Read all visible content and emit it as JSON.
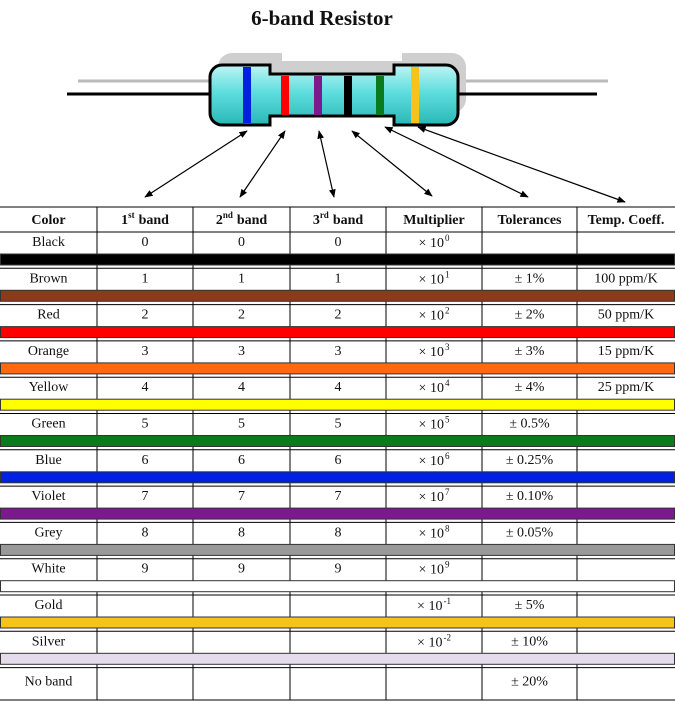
{
  "title": "6-band Resistor",
  "table": {
    "headers": [
      {
        "text": "Color"
      },
      {
        "lead": "1",
        "sup": "st",
        "text": "band"
      },
      {
        "lead": "2",
        "sup": "nd",
        "text": "band"
      },
      {
        "lead": "3",
        "sup": "rd",
        "text": "band"
      },
      {
        "text": "Multiplier"
      },
      {
        "text": "Tolerances"
      },
      {
        "text": "Temp. Coeff."
      }
    ],
    "rows": [
      {
        "name": "Black",
        "color": "#000000",
        "d1": "0",
        "d2": "0",
        "d3": "0",
        "mult": {
          "base": "× 10",
          "exp": "0"
        }
      },
      {
        "name": "Brown",
        "color": "#8b3a1a",
        "d1": "1",
        "d2": "1",
        "d3": "1",
        "mult": {
          "base": "× 10",
          "exp": "1"
        },
        "tol": "± 1%",
        "temp": "100 ppm/K"
      },
      {
        "name": "Red",
        "color": "#ff0000",
        "d1": "2",
        "d2": "2",
        "d3": "2",
        "mult": {
          "base": "× 10",
          "exp": "2"
        },
        "tol": "± 2%",
        "temp": "50 ppm/K"
      },
      {
        "name": "Orange",
        "color": "#ff6a10",
        "d1": "3",
        "d2": "3",
        "d3": "3",
        "mult": {
          "base": "× 10",
          "exp": "3"
        },
        "tol": "± 3%",
        "temp": "15 ppm/K"
      },
      {
        "name": "Yellow",
        "color": "#ffff00",
        "d1": "4",
        "d2": "4",
        "d3": "4",
        "mult": {
          "base": "× 10",
          "exp": "4"
        },
        "tol": "± 4%",
        "temp": "25 ppm/K"
      },
      {
        "name": "Green",
        "color": "#0a7a1e",
        "d1": "5",
        "d2": "5",
        "d3": "5",
        "mult": {
          "base": "× 10",
          "exp": "5"
        },
        "tol": "± 0.5%"
      },
      {
        "name": "Blue",
        "color": "#0022e0",
        "d1": "6",
        "d2": "6",
        "d3": "6",
        "mult": {
          "base": "× 10",
          "exp": "6"
        },
        "tol": "± 0.25%"
      },
      {
        "name": "Violet",
        "color": "#7a1a8c",
        "d1": "7",
        "d2": "7",
        "d3": "7",
        "mult": {
          "base": "× 10",
          "exp": "7"
        },
        "tol": "± 0.10%"
      },
      {
        "name": "Grey",
        "color": "#999999",
        "d1": "8",
        "d2": "8",
        "d3": "8",
        "mult": {
          "base": "× 10",
          "exp": "8"
        },
        "tol": "± 0.05%"
      },
      {
        "name": "White",
        "color": "#ffffff",
        "d1": "9",
        "d2": "9",
        "d3": "9",
        "mult": {
          "base": "× 10",
          "exp": "9"
        }
      },
      {
        "name": "Gold",
        "color": "#f5c31a",
        "mult": {
          "base": "× 10",
          "exp": "-1"
        },
        "tol": "± 5%"
      },
      {
        "name": "Silver",
        "color": "#e4dcec",
        "mult": {
          "base": "× 10",
          "exp": "-2"
        },
        "tol": "± 10%"
      },
      {
        "name": "No band",
        "tol": "± 20%"
      }
    ]
  }
}
